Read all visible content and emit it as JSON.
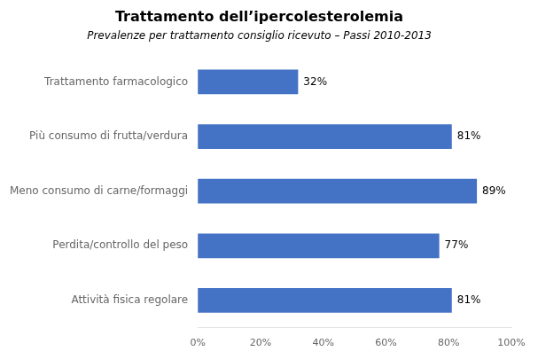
{
  "chart_data": {
    "type": "bar",
    "orientation": "horizontal",
    "title": "Trattamento dell’ipercolesterolemia",
    "subtitle": "Prevalenze per trattamento consiglio ricevuto – Passi 2010-2013",
    "categories": [
      "Attività fisica regolare",
      "Perdita/controllo del peso",
      "Meno consumo di carne/formaggi",
      "Più consumo di frutta/verdura",
      "Trattamento farmacologico"
    ],
    "values": [
      81,
      77,
      89,
      81,
      32
    ],
    "value_labels": [
      "81%",
      "77%",
      "89%",
      "81%",
      "32%"
    ],
    "data_labels": true,
    "color": "#4472C4",
    "xlim": [
      0,
      100
    ],
    "xticks": [
      {
        "value": 0,
        "label": "0%"
      },
      {
        "value": 20,
        "label": "20%"
      },
      {
        "value": 40,
        "label": "40%"
      },
      {
        "value": 60,
        "label": "60%"
      },
      {
        "value": 80,
        "label": "80%"
      },
      {
        "value": 100,
        "label": "100%"
      }
    ],
    "grid": false
  }
}
